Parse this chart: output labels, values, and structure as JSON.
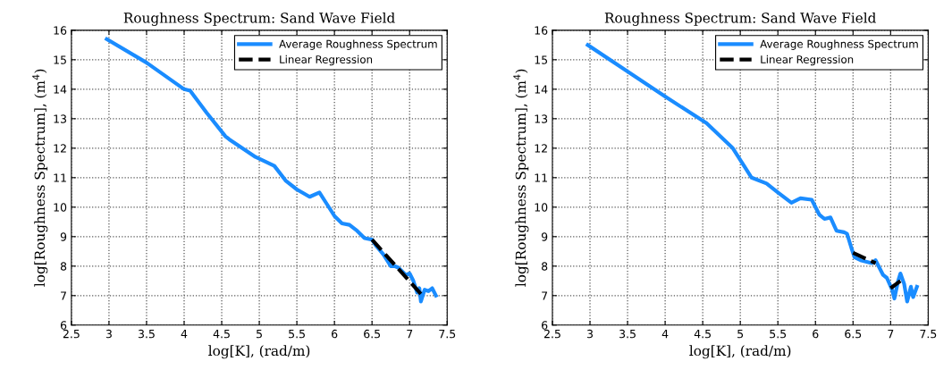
{
  "chart_data": [
    {
      "type": "line",
      "title": "Roughness Spectrum: Sand Wave Field",
      "xlabel": "log[K], (rad/m)",
      "ylabel": "log[Roughness Spectrum], (m$^{4}$)",
      "xlim": [
        2.5,
        7.5
      ],
      "ylim": [
        6,
        16
      ],
      "xticks": [
        2.5,
        3,
        3.5,
        4,
        4.5,
        5,
        5.5,
        6,
        6.5,
        7,
        7.5
      ],
      "yticks": [
        6,
        7,
        8,
        9,
        10,
        11,
        12,
        13,
        14,
        15,
        16
      ],
      "grid": true,
      "legend": "top right",
      "series": [
        {
          "name": "Average Roughness Spectrum",
          "color": "#1a8cff",
          "line_style": "solid",
          "x": [
            2.97,
            3.5,
            4.0,
            4.08,
            4.3,
            4.55,
            4.6,
            4.95,
            5.2,
            5.35,
            5.5,
            5.67,
            5.8,
            5.9,
            6.0,
            6.1,
            6.2,
            6.3,
            6.4,
            6.5,
            6.55,
            6.65,
            6.75,
            6.8,
            6.85,
            6.95,
            7.0,
            7.05,
            7.1,
            7.13,
            7.15,
            7.2,
            7.25,
            7.3,
            7.35
          ],
          "values": [
            15.7,
            14.9,
            14.0,
            13.95,
            13.2,
            12.4,
            12.3,
            11.7,
            11.4,
            10.9,
            10.6,
            10.35,
            10.5,
            10.1,
            9.7,
            9.45,
            9.4,
            9.2,
            8.95,
            8.9,
            8.7,
            8.4,
            8.0,
            8.0,
            7.95,
            7.7,
            7.75,
            7.5,
            7.1,
            7.25,
            6.8,
            7.2,
            7.15,
            7.25,
            7.0
          ]
        },
        {
          "name": "Linear Regression",
          "color": "#000000",
          "line_style": "dashed",
          "x": [
            6.5,
            7.17
          ],
          "values": [
            8.9,
            7.0
          ]
        }
      ]
    },
    {
      "type": "line",
      "title": "Roughness Spectrum: Sand Wave Field",
      "xlabel": "log[K], (rad/m)",
      "ylabel": "log[Roughness Spectrum], (m$^{4}$)",
      "xlim": [
        2.5,
        7.5
      ],
      "ylim": [
        6,
        16
      ],
      "xticks": [
        2.5,
        3,
        3.5,
        4,
        4.5,
        5,
        5.5,
        6,
        6.5,
        7,
        7.5
      ],
      "yticks": [
        6,
        7,
        8,
        9,
        10,
        11,
        12,
        13,
        14,
        15,
        16
      ],
      "grid": true,
      "legend": "top right",
      "series": [
        {
          "name": "Average Roughness Spectrum",
          "color": "#1a8cff",
          "line_style": "solid",
          "x": [
            2.97,
            3.5,
            4.0,
            4.55,
            4.9,
            5.05,
            5.15,
            5.35,
            5.5,
            5.68,
            5.8,
            5.95,
            6.05,
            6.12,
            6.2,
            6.28,
            6.38,
            6.42,
            6.48,
            6.52,
            6.6,
            6.75,
            6.8,
            6.9,
            6.95,
            7.02,
            7.05,
            7.1,
            7.13,
            7.18,
            7.22,
            7.27,
            7.3,
            7.35
          ],
          "values": [
            15.5,
            14.6,
            13.75,
            12.85,
            12.0,
            11.4,
            11.0,
            10.8,
            10.5,
            10.15,
            10.3,
            10.25,
            9.75,
            9.6,
            9.65,
            9.2,
            9.15,
            9.1,
            8.6,
            8.3,
            8.2,
            8.1,
            8.2,
            7.7,
            7.6,
            7.2,
            6.9,
            7.5,
            7.75,
            7.4,
            6.8,
            7.3,
            6.95,
            7.3
          ]
        },
        {
          "name": "Linear Regression",
          "color": "#000000",
          "line_style": "dashed",
          "x": [
            6.5,
            6.8,
            6.9,
            7.0,
            7.13
          ],
          "values": [
            8.45,
            8.1,
            null,
            7.25,
            7.5
          ]
        }
      ]
    }
  ]
}
